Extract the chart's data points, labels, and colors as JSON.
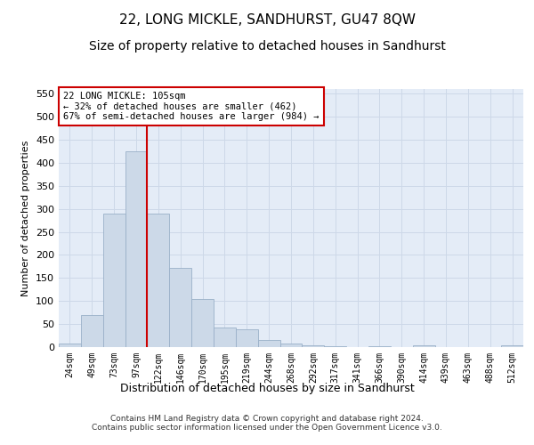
{
  "title": "22, LONG MICKLE, SANDHURST, GU47 8QW",
  "subtitle": "Size of property relative to detached houses in Sandhurst",
  "xlabel": "Distribution of detached houses by size in Sandhurst",
  "ylabel": "Number of detached properties",
  "footer_line1": "Contains HM Land Registry data © Crown copyright and database right 2024.",
  "footer_line2": "Contains public sector information licensed under the Open Government Licence v3.0.",
  "bin_labels": [
    "24sqm",
    "49sqm",
    "73sqm",
    "97sqm",
    "122sqm",
    "146sqm",
    "170sqm",
    "195sqm",
    "219sqm",
    "244sqm",
    "268sqm",
    "292sqm",
    "317sqm",
    "341sqm",
    "366sqm",
    "390sqm",
    "414sqm",
    "439sqm",
    "463sqm",
    "488sqm",
    "512sqm"
  ],
  "bar_values": [
    7,
    70,
    290,
    425,
    290,
    172,
    105,
    42,
    38,
    16,
    7,
    4,
    2,
    0,
    2,
    0,
    3,
    0,
    0,
    0,
    3
  ],
  "bar_color": "#ccd9e8",
  "bar_edge_color": "#9ab0c8",
  "vline_color": "#cc0000",
  "annotation_line1": "22 LONG MICKLE: 105sqm",
  "annotation_line2": "← 32% of detached houses are smaller (462)",
  "annotation_line3": "67% of semi-detached houses are larger (984) →",
  "annotation_box_color": "#ffffff",
  "annotation_box_edge_color": "#cc0000",
  "ylim": [
    0,
    560
  ],
  "yticks": [
    0,
    50,
    100,
    150,
    200,
    250,
    300,
    350,
    400,
    450,
    500,
    550
  ],
  "grid_color": "#cdd8e8",
  "background_color": "#e4ecf7",
  "title_fontsize": 11,
  "subtitle_fontsize": 10,
  "footer_fontsize": 6.5
}
